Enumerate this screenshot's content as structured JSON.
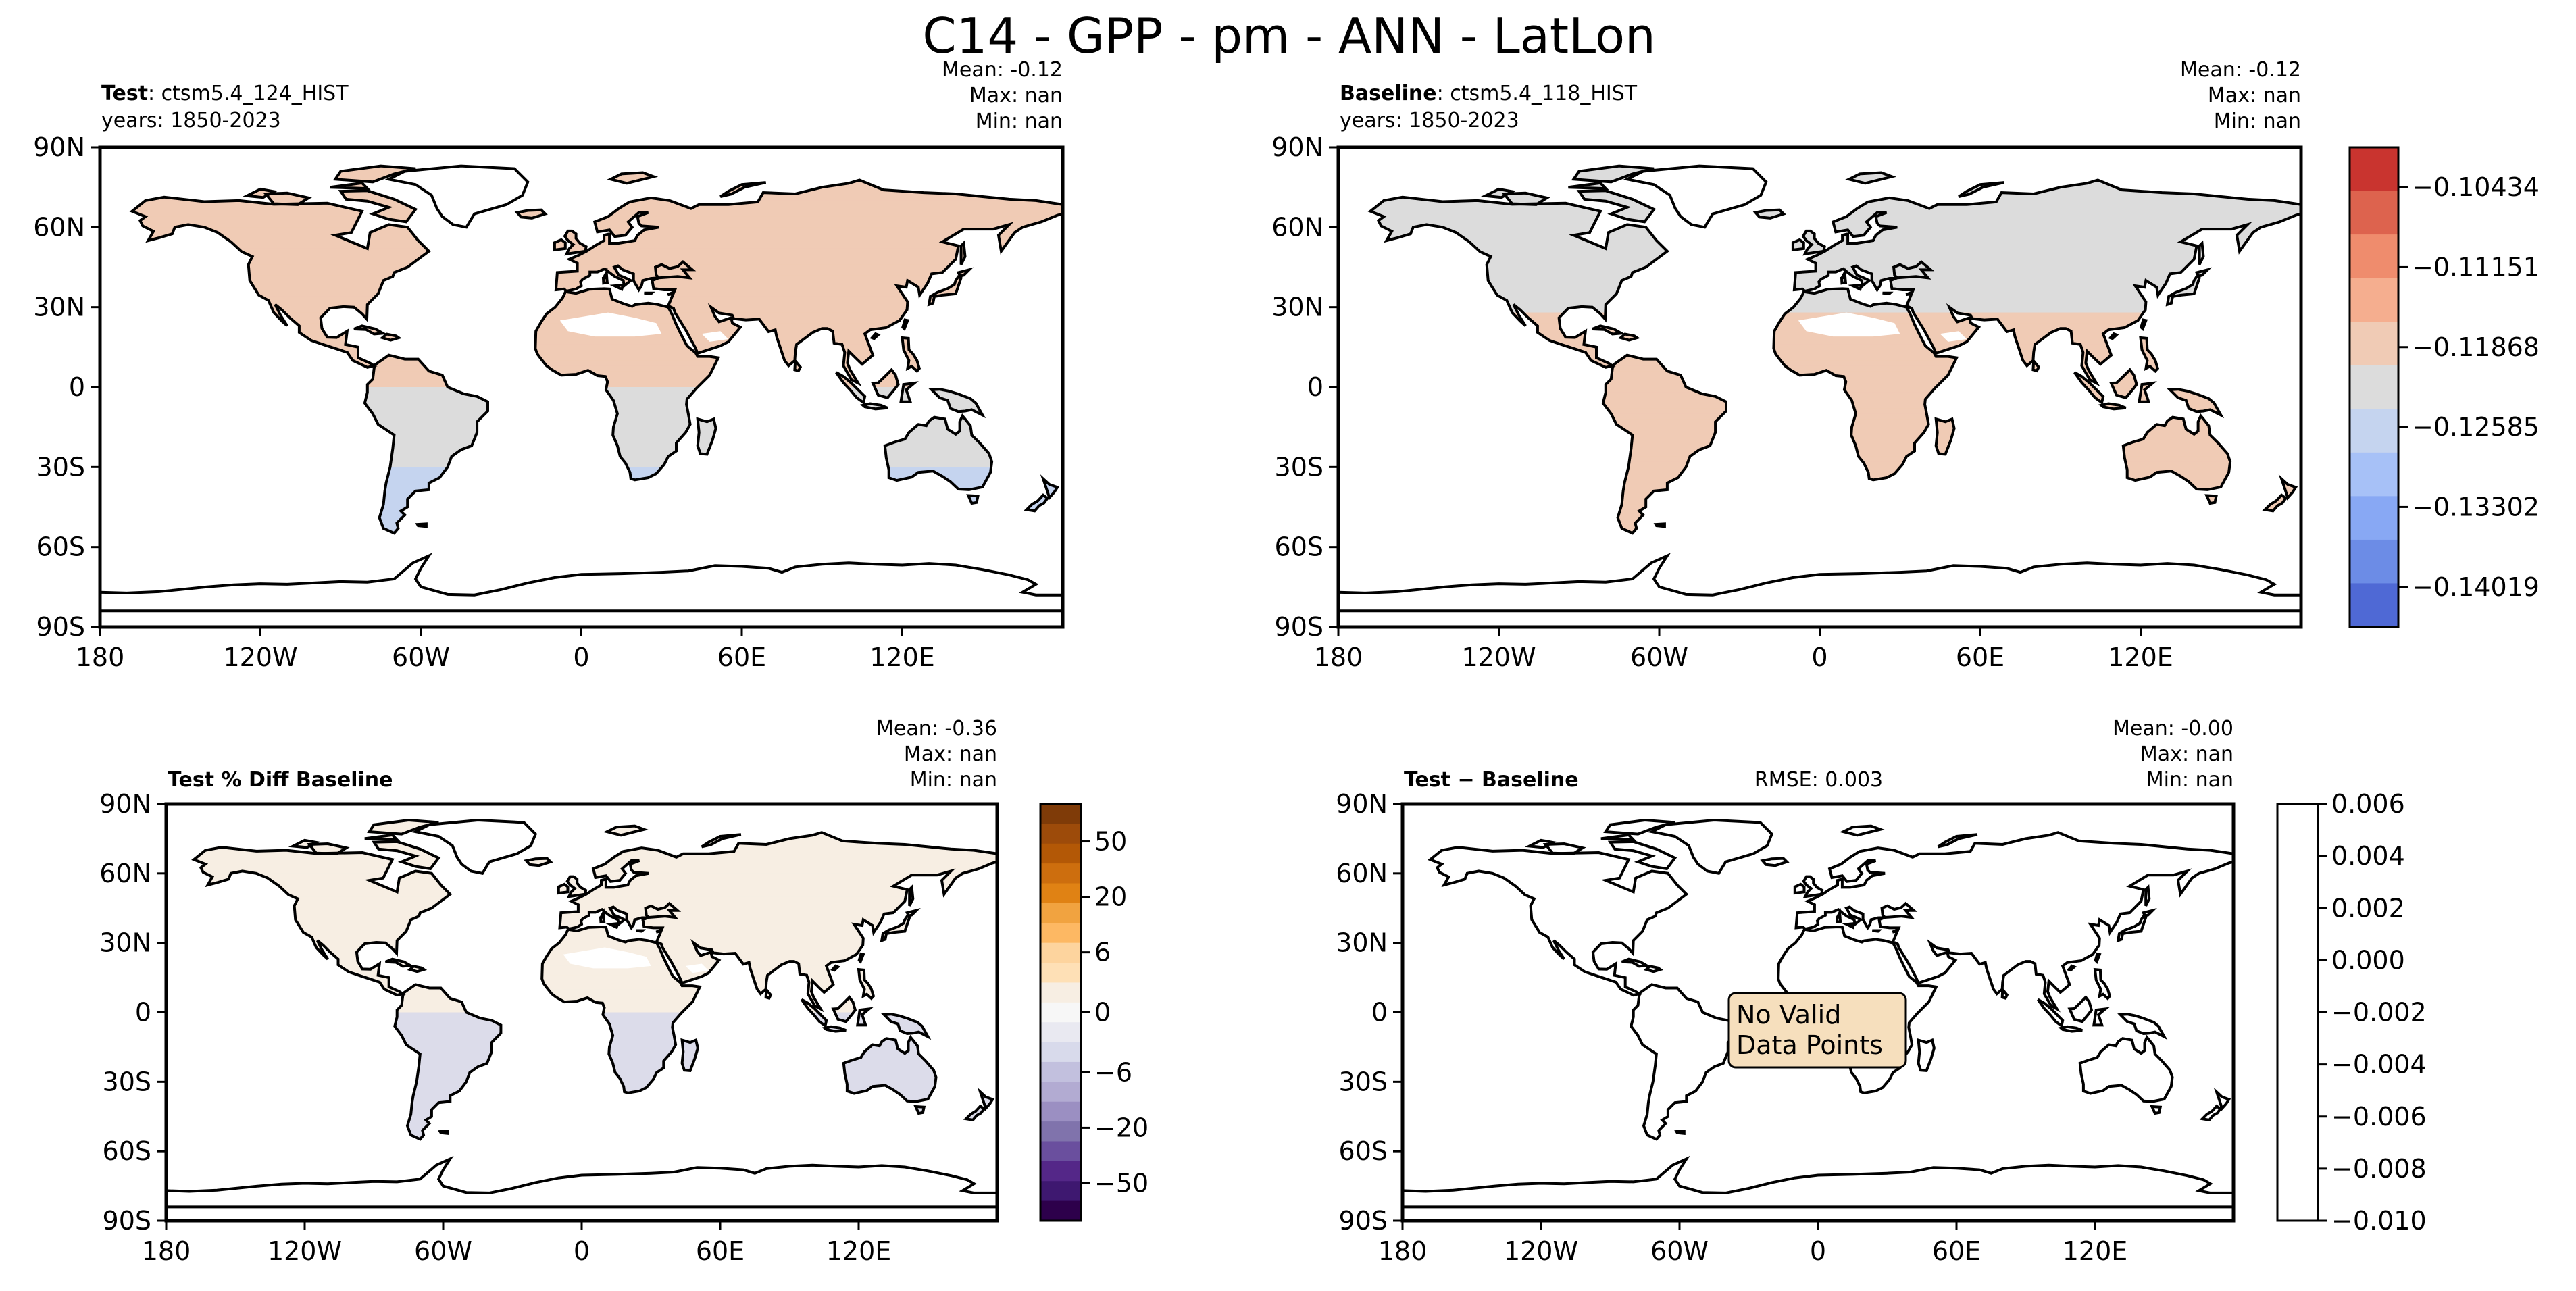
{
  "figure": {
    "title": "C14 - GPP - pm - ANN - LatLon"
  },
  "axes": {
    "lat_labels": [
      "90N",
      "60N",
      "30N",
      "0",
      "30S",
      "60S",
      "90S"
    ],
    "lon_labels": [
      "180",
      "120W",
      "60W",
      "0",
      "60E",
      "120E"
    ]
  },
  "panels": {
    "test": {
      "label_bold": "Test",
      "label_text": ": ctsm5.4_124_HIST",
      "years": "years: 1850-2023",
      "stats": {
        "mean": "Mean: -0.12",
        "max": "Max:   nan",
        "min": "Min:   nan"
      }
    },
    "baseline": {
      "label_bold": "Baseline",
      "label_text": ": ctsm5.4_118_HIST",
      "years": "years: 1850-2023",
      "stats": {
        "mean": "Mean: -0.12",
        "max": "Max:   nan",
        "min": "Min:   nan"
      }
    },
    "pct_diff": {
      "label_bold": "Test % Diff Baseline",
      "stats": {
        "mean": "Mean: -0.36",
        "max": "Max:   nan",
        "min": "Min:   nan"
      }
    },
    "diff": {
      "label_bold": "Test − Baseline",
      "rmse": "RMSE: 0.003",
      "stats": {
        "mean": "Mean: -0.00",
        "max": "Max:   nan",
        "min": "Min:   nan"
      },
      "no_data_line1": "No Valid",
      "no_data_line2": "Data Points"
    }
  },
  "colors": {
    "land_test_north": "#f0cbb5",
    "land_gray": "#dcdcdc",
    "land_blue": "#c5d4ef",
    "land_light_orange": "#f7eee3",
    "land_light_purple": "#dcdcea",
    "no_data_box": "#f6dfbd"
  },
  "chart_data": [
    {
      "type": "heatmap",
      "name": "test",
      "title": "Test: ctsm5.4_124_HIST",
      "value_bands": [
        {
          "region": "North of equator",
          "value_range": [
            -0.1219,
            -0.1187
          ]
        },
        {
          "region": "South of equator",
          "value_range": [
            -0.1259,
            -0.1219
          ]
        },
        {
          "region": "South of 30S",
          "value_range": [
            -0.1294,
            -0.1259
          ]
        }
      ],
      "colorbar": {
        "ticks": [
          -0.10434,
          -0.11151,
          -0.11868,
          -0.12585,
          -0.13302,
          -0.14019
        ],
        "tick_labels": [
          "−0.10434",
          "−0.11151",
          "−0.11868",
          "−0.12585",
          "−0.13302",
          "−0.14019"
        ],
        "colors": [
          "#c9342f",
          "#dd634e",
          "#ef8c6d",
          "#f5ae8f",
          "#f0cbb5",
          "#dcdcdc",
          "#c5d4ef",
          "#a7c1f7",
          "#88a8f4",
          "#6c8ce6",
          "#4f69d5"
        ]
      }
    },
    {
      "type": "heatmap",
      "name": "baseline",
      "title": "Baseline: ctsm5.4_118_HIST",
      "value_bands": [
        {
          "region": "North of 30N",
          "value_range": [
            -0.1259,
            -0.1219
          ]
        },
        {
          "region": "South of 30N",
          "value_range": [
            -0.1219,
            -0.1187
          ]
        }
      ]
    },
    {
      "type": "heatmap",
      "name": "pct_diff",
      "title": "Test % Diff Baseline",
      "value_bands": [
        {
          "region": "North of equator",
          "value_range": [
            0,
            1
          ]
        },
        {
          "region": "South of equator",
          "value_range": [
            -3,
            -1
          ]
        }
      ],
      "colorbar": {
        "tick_labels": [
          "50",
          "20",
          "6",
          "0",
          "−6",
          "−20",
          "−50"
        ],
        "ticks": [
          50,
          20,
          6,
          0,
          -6,
          -20,
          -50
        ],
        "colors": [
          "#7f3b08",
          "#9d4b0a",
          "#b35806",
          "#cd6e0e",
          "#e08214",
          "#f1a340",
          "#fdb863",
          "#fdd49e",
          "#fee0b6",
          "#f7eee3",
          "#f7f7f7",
          "#e9e9f1",
          "#d8daeb",
          "#c2c0de",
          "#b2abd2",
          "#9b8fc2",
          "#8073ac",
          "#6a4f9e",
          "#542788",
          "#3e1870",
          "#2d004b"
        ]
      }
    },
    {
      "type": "heatmap",
      "name": "diff",
      "title": "Test − Baseline",
      "values": [],
      "colorbar": {
        "ticks": [
          0.006,
          0.004,
          0.002,
          0.0,
          -0.002,
          -0.004,
          -0.006,
          -0.008,
          -0.01
        ],
        "tick_labels": [
          "0.006",
          "0.004",
          "0.002",
          "0.000",
          "−0.002",
          "−0.004",
          "−0.006",
          "−0.008",
          "−0.010"
        ]
      }
    }
  ]
}
